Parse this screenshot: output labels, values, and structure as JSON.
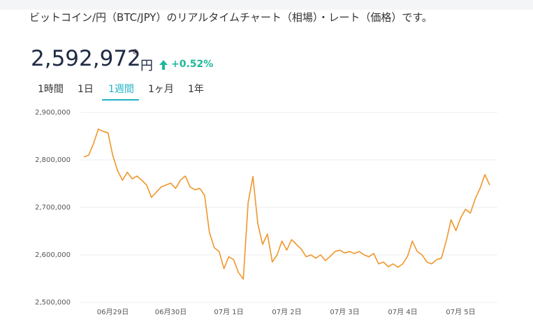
{
  "header": {
    "description": "ビットコイン/円（BTC/JPY）のリアルタイムチャート（相場）・レート（価格）です。"
  },
  "price": {
    "value": "2,592,972",
    "note_mark": "※",
    "unit": "円",
    "change": "+0.52%"
  },
  "tabs": {
    "items": [
      "1時間",
      "1日",
      "1週間",
      "1ヶ月",
      "1年"
    ],
    "active": 2
  },
  "chart_data": {
    "type": "line",
    "categories": [
      null,
      null,
      null,
      null,
      null,
      null,
      "06月29日",
      null,
      null,
      null,
      null,
      null,
      null,
      null,
      null,
      null,
      null,
      null,
      "06月30日",
      null,
      null,
      null,
      null,
      null,
      null,
      null,
      null,
      null,
      null,
      null,
      "07月 1日",
      null,
      null,
      null,
      null,
      null,
      null,
      null,
      null,
      null,
      null,
      null,
      "07月 2日",
      null,
      null,
      null,
      null,
      null,
      null,
      null,
      null,
      null,
      null,
      null,
      "07月 3日",
      null,
      null,
      null,
      null,
      null,
      null,
      null,
      null,
      null,
      null,
      null,
      "07月 4日",
      null,
      null,
      null,
      null,
      null,
      null,
      null,
      null,
      null,
      null,
      null,
      "07月 5日",
      null,
      null,
      null,
      null,
      null,
      null
    ],
    "series": [
      {
        "name": "BTC/JPY",
        "color": "#f0962a",
        "values": [
          2806000,
          2810000,
          2834000,
          2865000,
          2860000,
          2857000,
          2809000,
          2777000,
          2757000,
          2774000,
          2760000,
          2766000,
          2757000,
          2747000,
          2721000,
          2732000,
          2743000,
          2747000,
          2751000,
          2740000,
          2757000,
          2766000,
          2743000,
          2737000,
          2740000,
          2725000,
          2647000,
          2615000,
          2607000,
          2571000,
          2596000,
          2590000,
          2563000,
          2549000,
          2710000,
          2765000,
          2666000,
          2622000,
          2644000,
          2585000,
          2600000,
          2629000,
          2610000,
          2632000,
          2622000,
          2612000,
          2596000,
          2600000,
          2593000,
          2600000,
          2588000,
          2597000,
          2607000,
          2610000,
          2604000,
          2607000,
          2603000,
          2607000,
          2600000,
          2596000,
          2603000,
          2581000,
          2585000,
          2575000,
          2581000,
          2574000,
          2581000,
          2597000,
          2629000,
          2607000,
          2600000,
          2585000,
          2581000,
          2590000,
          2593000,
          2629000,
          2674000,
          2651000,
          2678000,
          2696000,
          2688000,
          2718000,
          2740000,
          2769000,
          2747000
        ]
      }
    ],
    "ylim": [
      2500000,
      2900000
    ],
    "yticks": [
      {
        "value": 2500000,
        "label": "2,500,000"
      },
      {
        "value": 2600000,
        "label": "2,600,000"
      },
      {
        "value": 2700000,
        "label": "2,700,000"
      },
      {
        "value": 2800000,
        "label": "2,800,000"
      },
      {
        "value": 2900000,
        "label": "2,900,000"
      }
    ],
    "grid": true
  }
}
